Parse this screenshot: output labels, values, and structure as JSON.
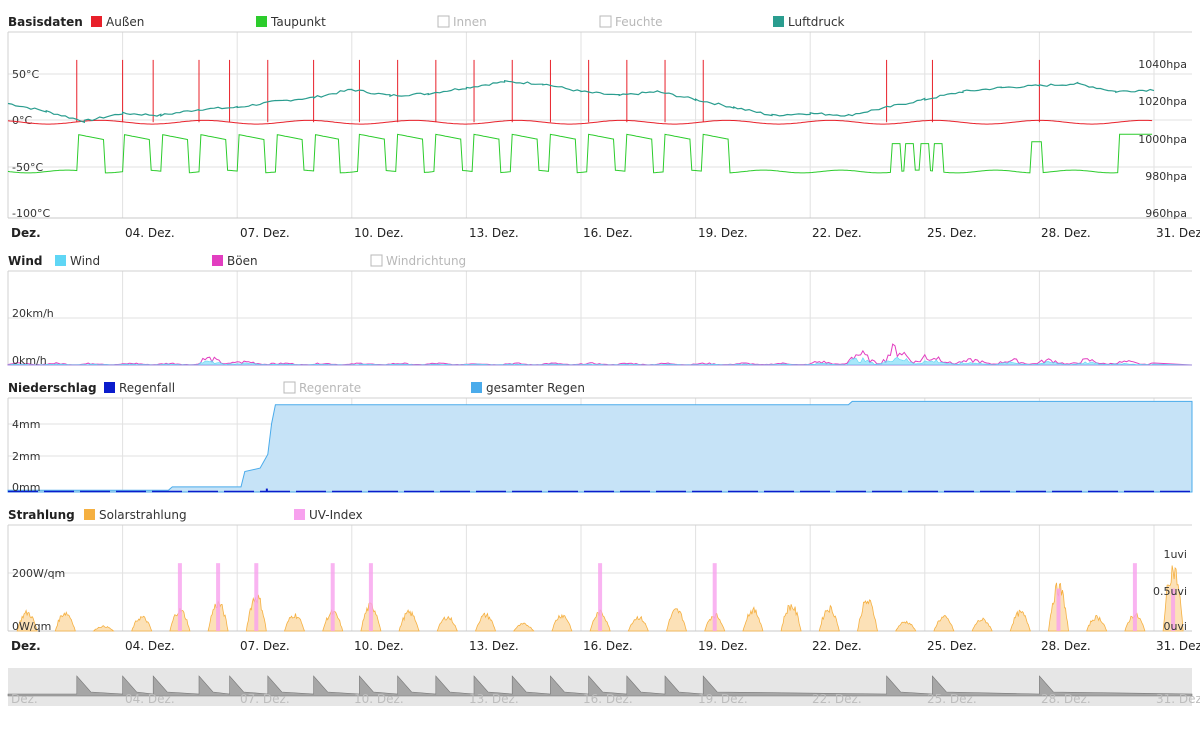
{
  "colors": {
    "aussen": "#e8202a",
    "taupunkt": "#2ccc2c",
    "luftdruck": "#2a9d8f",
    "wind": "#5fd6f5",
    "boeen": "#e23ec0",
    "regenfall": "#0a1ccc",
    "gesamter_regen": "#4aabeb",
    "solar": "#f5b041",
    "uv": "#f7a1ee",
    "disabled": "#b8b8b8",
    "grid": "#e2e2e2",
    "axis": "#c8c8c8",
    "navigator": "#888888"
  },
  "date_axis": {
    "first": "Dez.",
    "ticks": [
      "04. Dez.",
      "07. Dez.",
      "10. Dez.",
      "13. Dez.",
      "16. Dez.",
      "19. Dez.",
      "22. Dez.",
      "25. Dez.",
      "28. Dez.",
      "31. Dez."
    ]
  },
  "chart_data": [
    {
      "type": "line",
      "title": "Basisdaten",
      "x_range": [
        "01. Dez.",
        "31. Dez."
      ],
      "legend": [
        {
          "name": "Außen",
          "color": "aussen",
          "enabled": true
        },
        {
          "name": "Taupunkt",
          "color": "taupunkt",
          "enabled": true
        },
        {
          "name": "Innen",
          "color": "disabled",
          "enabled": false
        },
        {
          "name": "Feuchte",
          "color": "disabled",
          "enabled": false
        },
        {
          "name": "Luftdruck",
          "color": "luftdruck",
          "enabled": true
        }
      ],
      "y_left": {
        "ticks": [
          "50°C",
          "0°C",
          "-50°C",
          "-100°C"
        ],
        "values": [
          50,
          0,
          -50,
          -100
        ],
        "range": [
          -100,
          100
        ]
      },
      "y_right": {
        "ticks": [
          "1040hpa",
          "1020hpa",
          "1000hpa",
          "980hpa",
          "960hpa"
        ],
        "values": [
          1040,
          1020,
          1000,
          980,
          960
        ],
        "range": [
          960,
          1040
        ]
      },
      "series": [
        {
          "name": "Außen",
          "axis": "left",
          "baseline": 3,
          "spikes_day": [
            2.8,
            4.0,
            4.8,
            6.0,
            6.8,
            7.8,
            9.0,
            10.2,
            11.2,
            12.2,
            13.2,
            14.2,
            15.2,
            16.2,
            17.2,
            18.2,
            19.2,
            24.0,
            25.2,
            28.0
          ],
          "spike_peak": 70
        },
        {
          "name": "Taupunkt",
          "axis": "left",
          "baseline": -50,
          "spikes_day": [
            2.8,
            4.0,
            5.0,
            6.0,
            7.0,
            8.0,
            9.0,
            10.2,
            11.2,
            12.2,
            13.2,
            14.2,
            15.2,
            16.2,
            17.2,
            18.2,
            19.2
          ],
          "spike_peak": -10
        },
        {
          "name": "Luftdruck",
          "axis": "right",
          "points": [
            [
              1,
              1018
            ],
            [
              2,
              1014
            ],
            [
              3,
              1009
            ],
            [
              4,
              1013
            ],
            [
              5,
              1012
            ],
            [
              6,
              1015
            ],
            [
              7,
              1016
            ],
            [
              8,
              1019
            ],
            [
              9,
              1021
            ],
            [
              10,
              1025
            ],
            [
              11,
              1022
            ],
            [
              12,
              1023
            ],
            [
              13,
              1026
            ],
            [
              14,
              1029
            ],
            [
              15,
              1028
            ],
            [
              16,
              1024
            ],
            [
              17,
              1022
            ],
            [
              18,
              1024
            ],
            [
              19,
              1020
            ],
            [
              20,
              1016
            ],
            [
              21,
              1012
            ],
            [
              22,
              1013
            ],
            [
              23,
              1012
            ],
            [
              24,
              1016
            ],
            [
              25,
              1020
            ],
            [
              26,
              1024
            ],
            [
              27,
              1026
            ],
            [
              28,
              1027
            ],
            [
              29,
              1028
            ],
            [
              30,
              1024
            ],
            [
              31,
              1025
            ]
          ]
        }
      ]
    },
    {
      "type": "area",
      "title": "Wind",
      "legend": [
        {
          "name": "Wind",
          "color": "wind",
          "enabled": true
        },
        {
          "name": "Böen",
          "color": "boeen",
          "enabled": true
        },
        {
          "name": "Windrichtung",
          "color": "disabled",
          "enabled": false
        }
      ],
      "y_left": {
        "ticks": [
          "20km/h",
          "0km/h"
        ],
        "values": [
          20,
          0
        ],
        "range": [
          0,
          40
        ]
      },
      "series": [
        {
          "name": "Böen",
          "daily_max": [
            4,
            4,
            4,
            4,
            4,
            12,
            6,
            4,
            4,
            5,
            4,
            4,
            5,
            4,
            4,
            4,
            4,
            4,
            4,
            4,
            4,
            6,
            16,
            25,
            14,
            9,
            8,
            10,
            8,
            6,
            7
          ]
        },
        {
          "name": "Wind",
          "daily_max": [
            1,
            1,
            1,
            1,
            1,
            4,
            2,
            1,
            1,
            1,
            1,
            1,
            1,
            1,
            1,
            1,
            1,
            1,
            1,
            1,
            1,
            2,
            7,
            10,
            5,
            3,
            3,
            3,
            3,
            2,
            2
          ]
        }
      ]
    },
    {
      "type": "area",
      "title": "Niederschlag",
      "legend": [
        {
          "name": "Regenfall",
          "color": "regenfall",
          "enabled": true
        },
        {
          "name": "Regenrate",
          "color": "disabled",
          "enabled": false
        },
        {
          "name": "gesamter Regen",
          "color": "gesamter_regen",
          "enabled": true
        }
      ],
      "y_left": {
        "ticks": [
          "4mm",
          "2mm",
          "0mm"
        ],
        "values": [
          4,
          2,
          0
        ],
        "range": [
          0,
          5.5
        ]
      },
      "series": [
        {
          "name": "gesamter Regen",
          "points": [
            [
              1,
              0.1
            ],
            [
              5.2,
              0.1
            ],
            [
              5.3,
              0.3
            ],
            [
              7.1,
              0.3
            ],
            [
              7.2,
              1.2
            ],
            [
              7.6,
              1.4
            ],
            [
              7.8,
              2.2
            ],
            [
              7.9,
              4.0
            ],
            [
              8.0,
              5.1
            ],
            [
              23.0,
              5.1
            ],
            [
              23.1,
              5.3
            ],
            [
              31.0,
              5.3
            ]
          ]
        },
        {
          "name": "Regenfall",
          "points": [
            [
              7.75,
              0.2
            ]
          ]
        }
      ]
    },
    {
      "type": "area",
      "title": "Strahlung",
      "legend": [
        {
          "name": "Solarstrahlung",
          "color": "solar",
          "enabled": true
        },
        {
          "name": "UV-Index",
          "color": "uv",
          "enabled": true
        }
      ],
      "y_left": {
        "ticks": [
          "200W/qm",
          "0W/qm"
        ],
        "values": [
          200,
          0
        ],
        "range": [
          0,
          400
        ]
      },
      "y_right": {
        "ticks": [
          "1uvi",
          "0.5uvi",
          "0uvi"
        ],
        "values": [
          1,
          0.5,
          0
        ],
        "range": [
          0,
          1.25
        ]
      },
      "series": [
        {
          "name": "Solarstrahlung",
          "daily_peak": [
            80,
            80,
            20,
            60,
            90,
            120,
            150,
            70,
            80,
            110,
            80,
            60,
            70,
            30,
            70,
            80,
            60,
            90,
            70,
            90,
            110,
            100,
            130,
            40,
            60,
            50,
            80,
            190,
            60,
            70,
            270
          ]
        },
        {
          "name": "UV-Index",
          "daily_peak": [
            0,
            0,
            0,
            0,
            0.8,
            0.8,
            0.8,
            0,
            0.8,
            0.8,
            0,
            0,
            0,
            0,
            0,
            0.8,
            0,
            0,
            0.8,
            0,
            0,
            0,
            0,
            0,
            0,
            0,
            0,
            0.5,
            0,
            0.8,
            0.5
          ]
        }
      ]
    }
  ]
}
